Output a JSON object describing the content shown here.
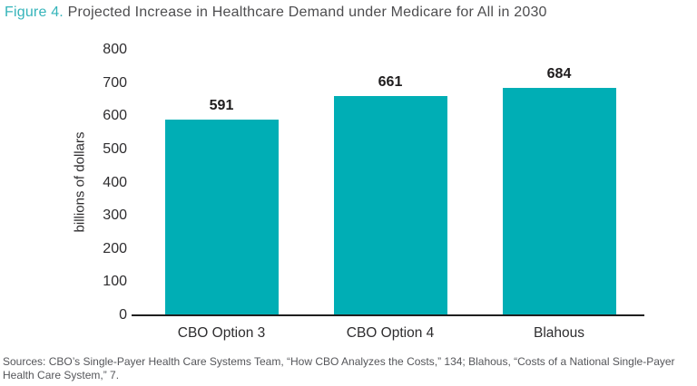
{
  "title": {
    "prefix": "Figure 4.",
    "text": " Projected Increase in Healthcare Demand under Medicare for All in 2030"
  },
  "chart_data": {
    "type": "bar",
    "title": "Projected Increase in Healthcare Demand under Medicare for All in 2030",
    "categories": [
      "CBO Option 3",
      "CBO Option 4",
      "Blahous"
    ],
    "values": [
      591,
      661,
      684
    ],
    "value_labels": [
      "591",
      "661",
      "684"
    ],
    "xlabel": "",
    "ylabel": "billions of dollars",
    "ylim": [
      0,
      800
    ],
    "yticks": [
      0,
      100,
      200,
      300,
      400,
      500,
      600,
      700,
      800
    ],
    "grid": false,
    "legend": false,
    "bar_color": "#00aeb5"
  },
  "footer": {
    "sources": "Sources: CBO’s Single-Payer Health Care Systems Team, “How CBO Analyzes the Costs,” 134; Blahous, “Costs of a National Single-Payer Health Care System,” 7."
  },
  "colors": {
    "accent_teal": "#00aeb5",
    "title_teal": "#35b4ba",
    "title_dark": "#4d4d4f",
    "text_dark": "#2e2d2f",
    "text_gray": "#55565a",
    "axis_line": "#1f1f1f"
  }
}
